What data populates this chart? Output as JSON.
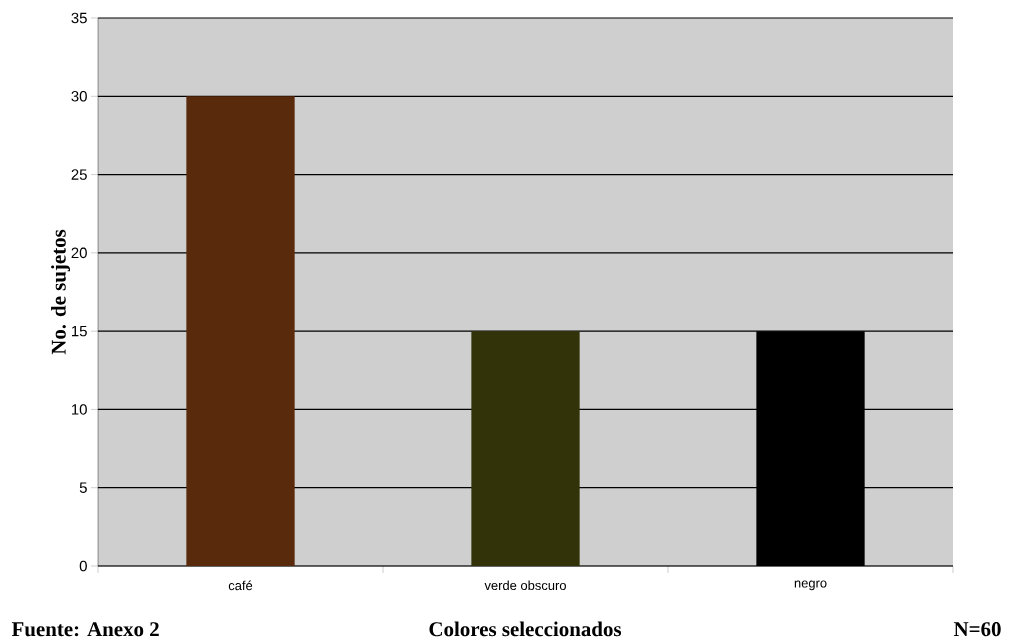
{
  "chart_data": {
    "type": "bar",
    "categories": [
      "café",
      "verde obscuro",
      "negro"
    ],
    "values": [
      30,
      15,
      15
    ],
    "colors": [
      "#5a2a0c",
      "#33330a",
      "#000000"
    ],
    "ylim": [
      0,
      35
    ],
    "yticks": [
      0,
      5,
      10,
      15,
      20,
      25,
      30,
      35
    ],
    "grid": "y",
    "ylabel": "No. de sujetos",
    "xlabel": "Colores seleccionados",
    "annotations": [
      "Fuente: Anexo 2",
      "N=60"
    ]
  }
}
